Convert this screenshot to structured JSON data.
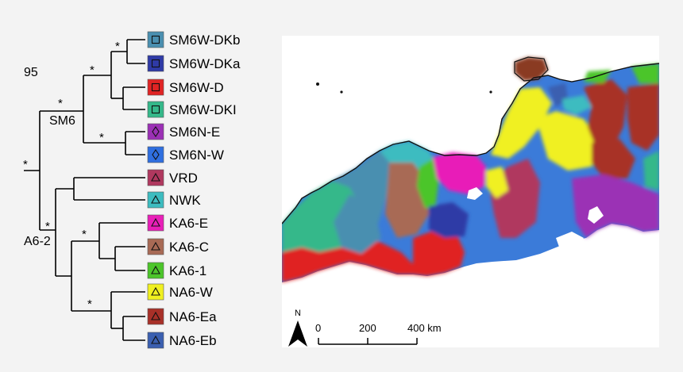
{
  "tree": {
    "bootstrap_label": "95",
    "clade_labels": {
      "sm6": "SM6",
      "a6_2": "A6-2"
    },
    "support_mark": "*",
    "tips": [
      {
        "label": "SM6W-DKb",
        "color": "#4a8fb0",
        "symbol": "square"
      },
      {
        "label": "SM6W-DKa",
        "color": "#2f3aa6",
        "symbol": "square"
      },
      {
        "label": "SM6W-D",
        "color": "#e02424",
        "symbol": "square"
      },
      {
        "label": "SM6W-DKI",
        "color": "#35b88a",
        "symbol": "square"
      },
      {
        "label": "SM6N-E",
        "color": "#9b30b5",
        "symbol": "diamond"
      },
      {
        "label": "SM6N-W",
        "color": "#2f6fe0",
        "symbol": "diamond"
      },
      {
        "label": "VRD",
        "color": "#b0385f",
        "symbol": "triangle"
      },
      {
        "label": "NWK",
        "color": "#3cbcc0",
        "symbol": "triangle"
      },
      {
        "label": "KA6-E",
        "color": "#e81fb8",
        "symbol": "triangle"
      },
      {
        "label": "KA6-C",
        "color": "#a86a55",
        "symbol": "triangle"
      },
      {
        "label": "KA6-1",
        "color": "#4cc52a",
        "symbol": "triangle"
      },
      {
        "label": "NA6-W",
        "color": "#f0f020",
        "symbol": "triangle"
      },
      {
        "label": "NA6-Ea",
        "color": "#a83028",
        "symbol": "triangle"
      },
      {
        "label": "NA6-Eb",
        "color": "#3a5fb0",
        "symbol": "triangle"
      }
    ]
  },
  "map": {
    "north_label": "N",
    "scale_ticks": [
      "0",
      "200",
      "400 km"
    ]
  }
}
